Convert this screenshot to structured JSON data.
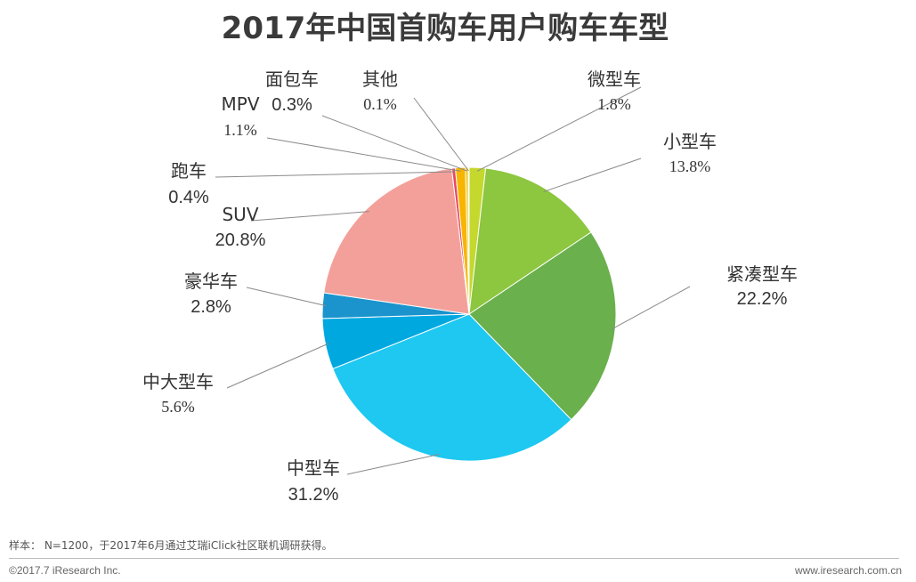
{
  "chart_data": {
    "type": "pie",
    "title": "2017年中国首购车用户购车车型",
    "slices": [
      {
        "label": "微型车",
        "value": 1.8,
        "value_label": "1.8%",
        "color": "#c4d82e"
      },
      {
        "label": "小型车",
        "value": 13.8,
        "value_label": "13.8%",
        "color": "#8dc63f"
      },
      {
        "label": "紧凑型车",
        "value": 22.2,
        "value_label": "22.2%",
        "color": "#6ab04c"
      },
      {
        "label": "中型车",
        "value": 31.2,
        "value_label": "31.2%",
        "color": "#1ec8f0"
      },
      {
        "label": "中大型车",
        "value": 5.6,
        "value_label": "5.6%",
        "color": "#00a8e0"
      },
      {
        "label": "豪华车",
        "value": 2.8,
        "value_label": "2.8%",
        "color": "#1b93cc"
      },
      {
        "label": "SUV",
        "value": 20.8,
        "value_label": "20.8%",
        "color": "#f4a09a"
      },
      {
        "label": "跑车",
        "value": 0.4,
        "value_label": "0.4%",
        "color": "#e84a5f"
      },
      {
        "label": "MPV",
        "value": 1.1,
        "value_label": "1.1%",
        "color": "#f7b500"
      },
      {
        "label": "面包车",
        "value": 0.3,
        "value_label": "0.3%",
        "color": "#f0c419"
      },
      {
        "label": "其他",
        "value": 0.1,
        "value_label": "0.1%",
        "color": "#d4c85a"
      }
    ]
  },
  "footnote": "样本： N=1200，于2017年6月通过艾瑞iClick社区联机调研获得。",
  "footer": {
    "copyright": "©2017.7 iResearch Inc.",
    "website": "www.iresearch.com.cn"
  }
}
